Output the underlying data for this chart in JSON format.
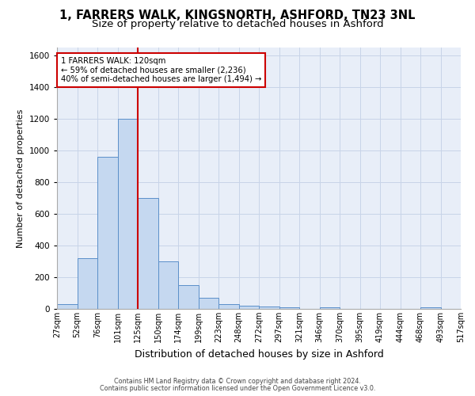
{
  "title_line1": "1, FARRERS WALK, KINGSNORTH, ASHFORD, TN23 3NL",
  "title_line2": "Size of property relative to detached houses in Ashford",
  "xlabel": "Distribution of detached houses by size in Ashford",
  "ylabel": "Number of detached properties",
  "footer1": "Contains HM Land Registry data © Crown copyright and database right 2024.",
  "footer2": "Contains public sector information licensed under the Open Government Licence v3.0.",
  "bar_values": [
    30,
    320,
    960,
    1200,
    700,
    300,
    150,
    70,
    30,
    20,
    15,
    10,
    0,
    10,
    0,
    0,
    0,
    0,
    10,
    0
  ],
  "bin_labels": [
    "27sqm",
    "52sqm",
    "76sqm",
    "101sqm",
    "125sqm",
    "150sqm",
    "174sqm",
    "199sqm",
    "223sqm",
    "248sqm",
    "272sqm",
    "297sqm",
    "321sqm",
    "346sqm",
    "370sqm",
    "395sqm",
    "419sqm",
    "444sqm",
    "468sqm",
    "493sqm",
    "517sqm"
  ],
  "bar_color_face": "#c5d8f0",
  "bar_color_edge": "#5b8fc9",
  "vline_color": "#cc0000",
  "vline_x_index": 4,
  "annotation_text_line1": "1 FARRERS WALK: 120sqm",
  "annotation_text_line2": "← 59% of detached houses are smaller (2,236)",
  "annotation_text_line3": "40% of semi-detached houses are larger (1,494) →",
  "ylim": [
    0,
    1650
  ],
  "yticks": [
    0,
    200,
    400,
    600,
    800,
    1000,
    1200,
    1400,
    1600
  ],
  "grid_color": "#c8d4e8",
  "bg_color": "#e8eef8",
  "title_fontsize": 10.5,
  "subtitle_fontsize": 9.5,
  "ylabel_fontsize": 8,
  "xlabel_fontsize": 9,
  "tick_labelsize": 7,
  "footer_fontsize": 5.8
}
